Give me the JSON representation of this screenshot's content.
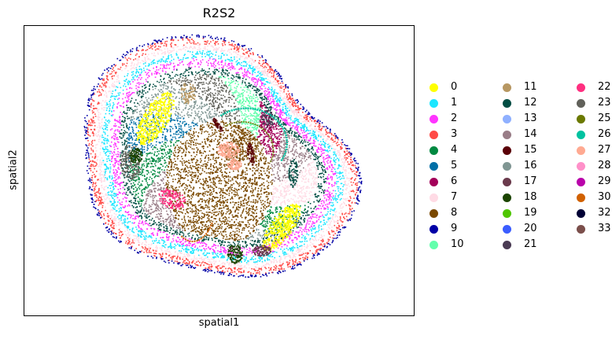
{
  "chart_data": {
    "type": "scatter",
    "title": "R2S2",
    "xlabel": "spatial1",
    "ylabel": "spatial2",
    "grid": false,
    "legend_placement": "right",
    "legend_columns": 3,
    "xticks": [],
    "yticks": [],
    "series": [
      {
        "name": "0",
        "color": "#ffff00"
      },
      {
        "name": "1",
        "color": "#1ce6ff"
      },
      {
        "name": "2",
        "color": "#ff34ff"
      },
      {
        "name": "3",
        "color": "#ff4a46"
      },
      {
        "name": "4",
        "color": "#008941"
      },
      {
        "name": "5",
        "color": "#006fa6"
      },
      {
        "name": "6",
        "color": "#a30059"
      },
      {
        "name": "7",
        "color": "#ffdbe5"
      },
      {
        "name": "8",
        "color": "#7a4900"
      },
      {
        "name": "9",
        "color": "#0000a6"
      },
      {
        "name": "10",
        "color": "#63ffac"
      },
      {
        "name": "11",
        "color": "#b79762"
      },
      {
        "name": "12",
        "color": "#004d43"
      },
      {
        "name": "13",
        "color": "#8fb0ff"
      },
      {
        "name": "14",
        "color": "#997d87"
      },
      {
        "name": "15",
        "color": "#5a0007"
      },
      {
        "name": "16",
        "color": "#809693"
      },
      {
        "name": "17",
        "color": "#6a3a4c"
      },
      {
        "name": "18",
        "color": "#1b4400"
      },
      {
        "name": "19",
        "color": "#4fc601"
      },
      {
        "name": "20",
        "color": "#3b5dff"
      },
      {
        "name": "21",
        "color": "#4a3b53"
      },
      {
        "name": "22",
        "color": "#ff2f80"
      },
      {
        "name": "23",
        "color": "#61615a"
      },
      {
        "name": "25",
        "color": "#6b7900"
      },
      {
        "name": "26",
        "color": "#00c2a0"
      },
      {
        "name": "27",
        "color": "#ffaa92"
      },
      {
        "name": "28",
        "color": "#ff90c9"
      },
      {
        "name": "29",
        "color": "#b903aa"
      },
      {
        "name": "30",
        "color": "#d16100"
      },
      {
        "name": "32",
        "color": "#000035"
      },
      {
        "name": "33",
        "color": "#7b4f4b"
      }
    ]
  }
}
